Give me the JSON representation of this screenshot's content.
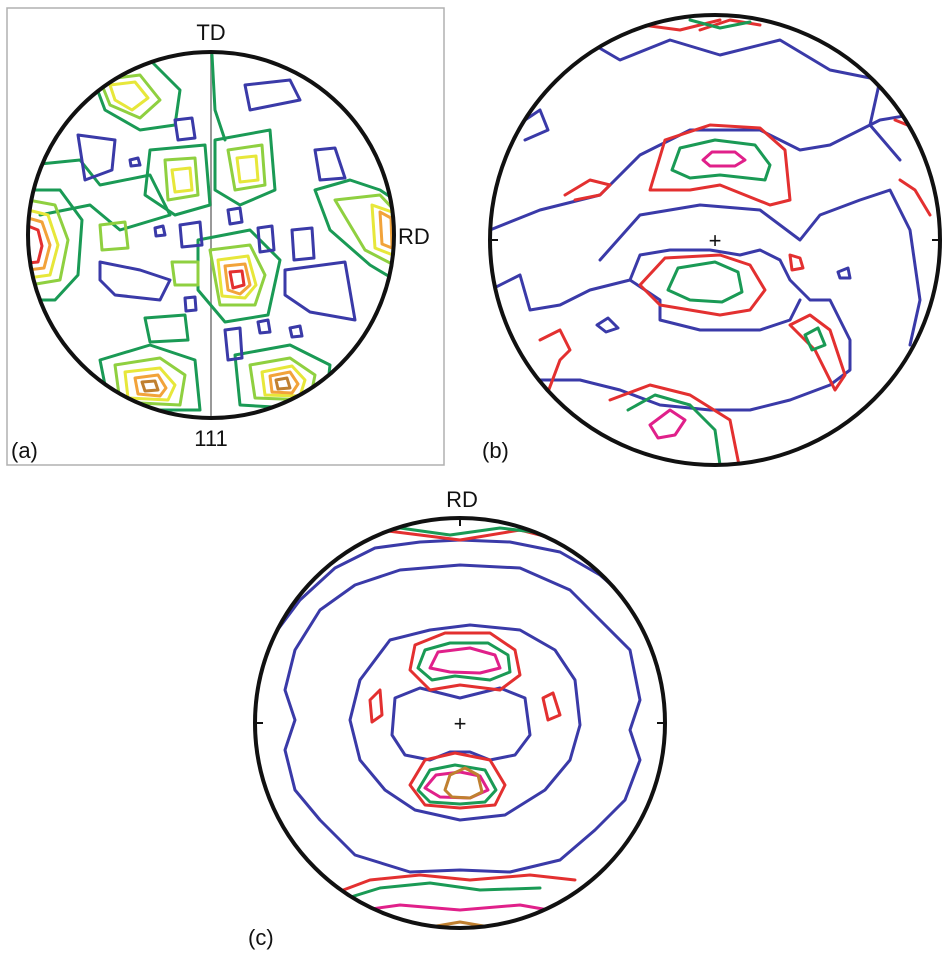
{
  "panel_a": {
    "label": "(a)",
    "top_label": "TD",
    "right_label": "RD",
    "bottom_label": "111"
  },
  "panel_b": {
    "label": "(b)",
    "center_marker": "+"
  },
  "panel_c": {
    "label": "(c)",
    "top_label": "RD",
    "center_marker": "+"
  },
  "contour_colors": {
    "level_1": "#3a3aa8",
    "level_2": "#1a9a55",
    "level_3": "#8fd040",
    "level_4": "#e7e73a",
    "level_5": "#f2a33a",
    "level_6": "#c08030",
    "level_7": "#e33030",
    "level_8": "#e0208a"
  }
}
